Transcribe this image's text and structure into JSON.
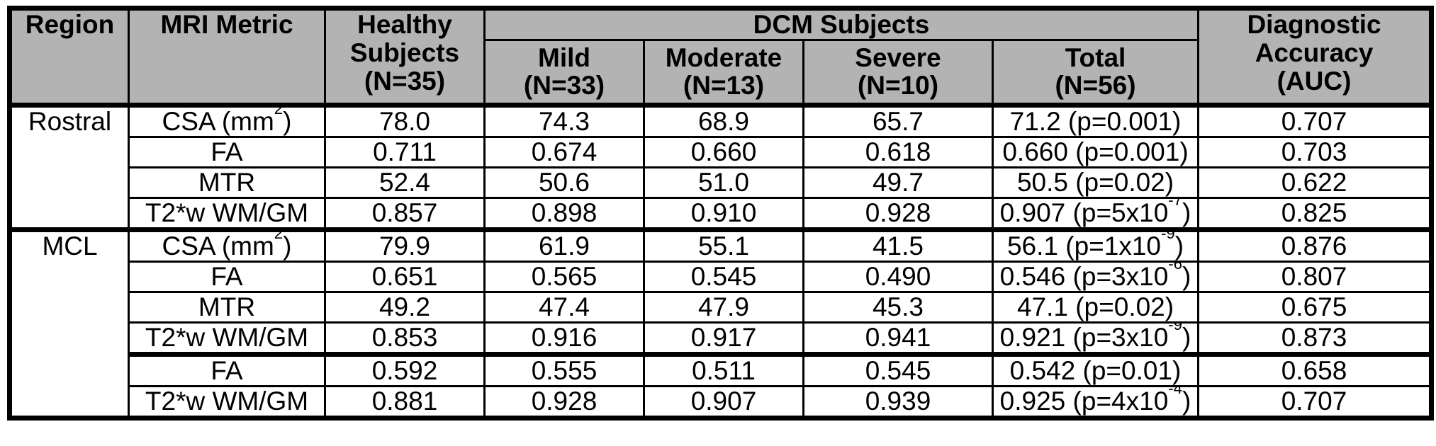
{
  "table": {
    "header": {
      "region": "Region",
      "mri_metric": "MRI Metric",
      "healthy_subjects": "Healthy\nSubjects\n(N=35)",
      "dcm_subjects": "DCM Subjects",
      "mild": "Mild\n(N=33)",
      "moderate": "Moderate\n(N=13)",
      "severe": "Severe\n(N=10)",
      "total": "Total\n(N=56)",
      "diagnostic_accuracy": "Diagnostic\nAccuracy\n(AUC)"
    },
    "sections": [
      {
        "region": "Rostral",
        "rows": [
          {
            "metric": "CSA (mm^{2})",
            "healthy": "78.0",
            "mild": "74.3",
            "moderate": "68.9",
            "severe": "65.7",
            "total": "71.2 (p=0.001)",
            "auc": "0.707"
          },
          {
            "metric": "FA",
            "healthy": "0.711",
            "mild": "0.674",
            "moderate": "0.660",
            "severe": "0.618",
            "total": "0.660 (p=0.001)",
            "auc": "0.703"
          },
          {
            "metric": "MTR",
            "healthy": "52.4",
            "mild": "50.6",
            "moderate": "51.0",
            "severe": "49.7",
            "total": "50.5 (p=0.02)",
            "auc": "0.622"
          },
          {
            "metric": "T2*w WM/GM",
            "healthy": "0.857",
            "mild": "0.898",
            "moderate": "0.910",
            "severe": "0.928",
            "total": "0.907 (p=5x10^{-7})",
            "auc": "0.825"
          }
        ]
      },
      {
        "region": "MCL",
        "rows": [
          {
            "metric": "CSA (mm^{2})",
            "healthy": "79.9",
            "mild": "61.9",
            "moderate": "55.1",
            "severe": "41.5",
            "total": "56.1 (p=1x10^{-9})",
            "auc": "0.876"
          },
          {
            "metric": "FA",
            "healthy": "0.651",
            "mild": "0.565",
            "moderate": "0.545",
            "severe": "0.490",
            "total": "0.546 (p=3x10^{-6})",
            "auc": "0.807"
          },
          {
            "metric": "MTR",
            "healthy": "49.2",
            "mild": "47.4",
            "moderate": "47.9",
            "severe": "45.3",
            "total": "47.1 (p=0.02)",
            "auc": "0.675"
          },
          {
            "metric": "T2*w WM/GM",
            "healthy": "0.853",
            "mild": "0.916",
            "moderate": "0.917",
            "severe": "0.941",
            "total": "0.921 (p=3x10^{-9})",
            "auc": "0.873"
          }
        ],
        "subrows": [
          {
            "metric": "FA",
            "healthy": "0.592",
            "mild": "0.555",
            "moderate": "0.511",
            "severe": "0.545",
            "total": "0.542 (p=0.01)",
            "auc": "0.658"
          },
          {
            "metric": "T2*w WM/GM",
            "healthy": "0.881",
            "mild": "0.928",
            "moderate": "0.907",
            "severe": "0.939",
            "total": "0.925 (p=4x10^{-4})",
            "auc": "0.707"
          }
        ]
      }
    ],
    "colors": {
      "header_background": "#b3b3b3",
      "border": "#000000",
      "body_background": "#ffffff",
      "text": "#000000"
    }
  }
}
